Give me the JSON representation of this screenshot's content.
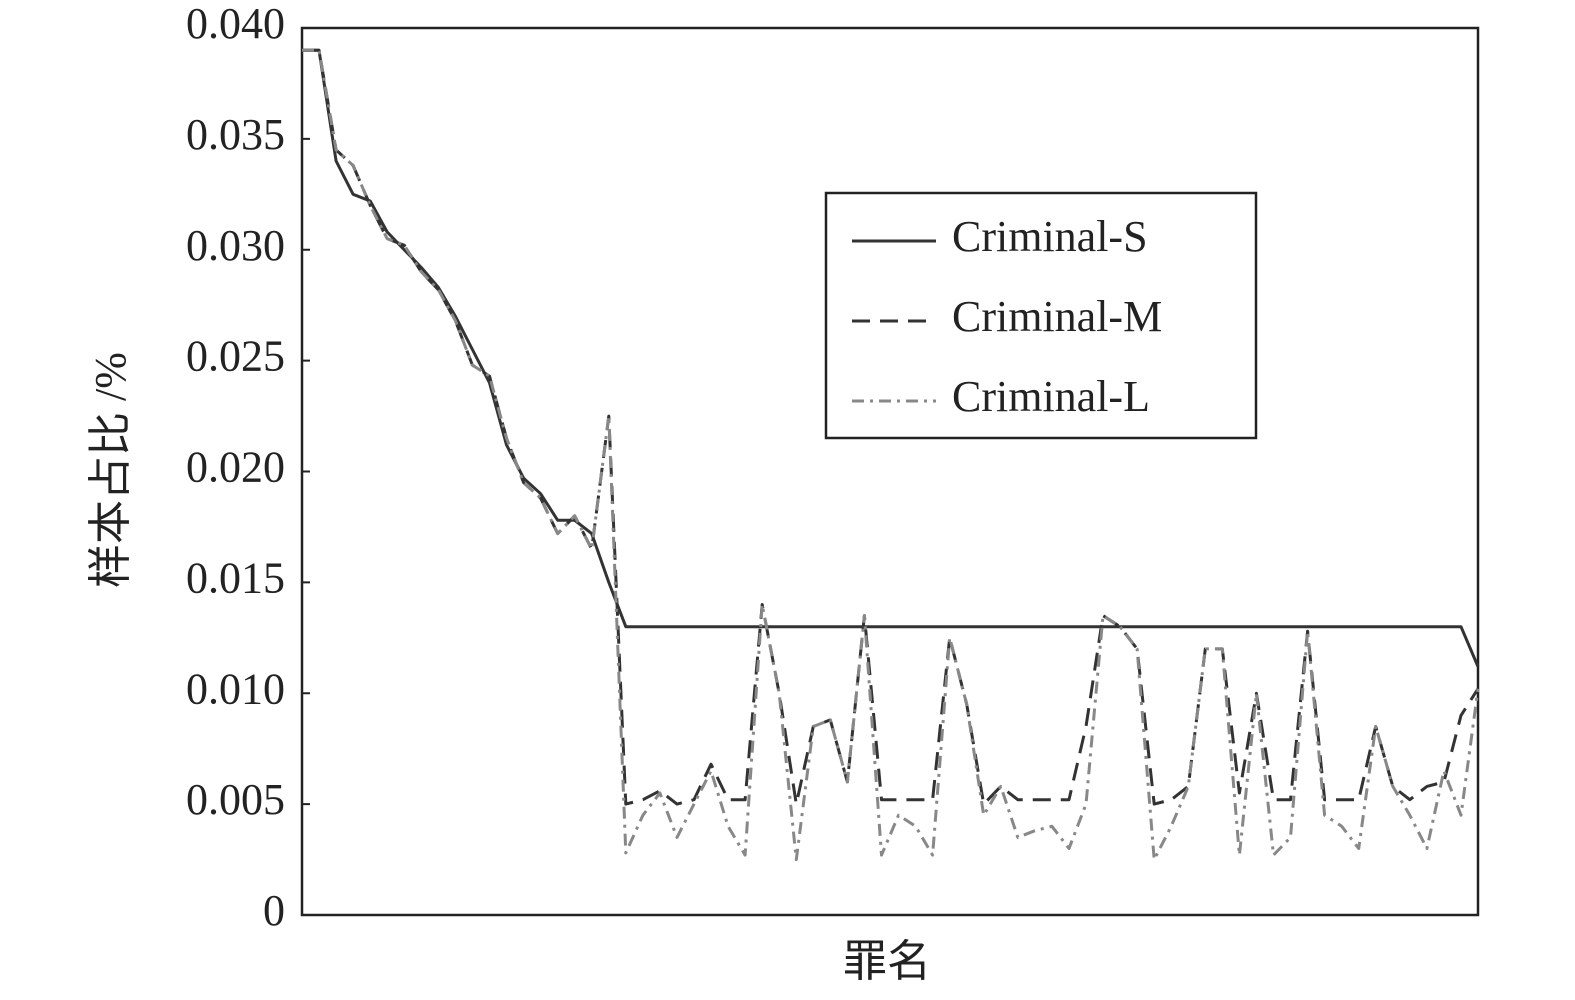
{
  "chart_data": {
    "type": "line",
    "xlabel": "罪名",
    "ylabel": "样本占比 /%",
    "categories": [
      null,
      null,
      null,
      null,
      null,
      null,
      null,
      null,
      null,
      null,
      null,
      null,
      null,
      null,
      null,
      null,
      null,
      null,
      null,
      null,
      null,
      null,
      null,
      null,
      null,
      null,
      null,
      null,
      null,
      null,
      null,
      null,
      null,
      null,
      null,
      null,
      null,
      null,
      null,
      null,
      null,
      null,
      null,
      null,
      null,
      null,
      null,
      null,
      null,
      null,
      null,
      null,
      null,
      null,
      null,
      null,
      null,
      null,
      null,
      null,
      null,
      null,
      null,
      null,
      null,
      null,
      null,
      null,
      null,
      null
    ],
    "series": [
      {
        "name": "Criminal-S",
        "color": "#333333",
        "style": "solid",
        "values": [
          0.039,
          0.039,
          0.034,
          0.0325,
          0.0322,
          0.0308,
          0.03,
          0.0292,
          0.0283,
          0.027,
          0.0255,
          0.024,
          0.0212,
          0.0197,
          0.019,
          0.0178,
          0.0178,
          0.0172,
          0.015,
          0.013,
          0.013,
          0.013,
          0.013,
          0.013,
          0.013,
          0.013,
          0.013,
          0.013,
          0.013,
          0.013,
          0.013,
          0.013,
          0.013,
          0.013,
          0.013,
          0.013,
          0.013,
          0.013,
          0.013,
          0.013,
          0.013,
          0.013,
          0.013,
          0.013,
          0.013,
          0.013,
          0.013,
          0.013,
          0.013,
          0.013,
          0.013,
          0.013,
          0.013,
          0.013,
          0.013,
          0.013,
          0.013,
          0.013,
          0.013,
          0.013,
          0.013,
          0.013,
          0.013,
          0.013,
          0.013,
          0.013,
          0.013,
          0.013,
          0.013,
          0.0112
        ]
      },
      {
        "name": "Criminal-M",
        "color": "#333333",
        "style": "dashed",
        "values": [
          0.039,
          0.039,
          0.0345,
          0.0338,
          0.032,
          0.0305,
          0.0302,
          0.029,
          0.0282,
          0.0268,
          0.0248,
          0.0243,
          0.0215,
          0.0195,
          0.0188,
          0.0172,
          0.018,
          0.0165,
          0.0225,
          0.005,
          0.0052,
          0.0056,
          0.005,
          0.0052,
          0.0068,
          0.0052,
          0.0052,
          0.014,
          0.01,
          0.005,
          0.0085,
          0.0088,
          0.006,
          0.0135,
          0.0052,
          0.0052,
          0.0052,
          0.0052,
          0.0125,
          0.0095,
          0.005,
          0.0058,
          0.0052,
          0.0052,
          0.0052,
          0.0052,
          0.0085,
          0.0135,
          0.013,
          0.012,
          0.005,
          0.0052,
          0.0058,
          0.012,
          0.012,
          0.0055,
          0.01,
          0.0052,
          0.0052,
          0.0128,
          0.0052,
          0.0052,
          0.0052,
          0.0085,
          0.0058,
          0.0052,
          0.0058,
          0.006,
          0.009,
          0.0102
        ]
      },
      {
        "name": "Criminal-L",
        "color": "#888888",
        "style": "dashdot",
        "values": [
          0.039,
          0.039,
          0.0345,
          0.0338,
          0.032,
          0.0305,
          0.0302,
          0.029,
          0.0282,
          0.0268,
          0.0248,
          0.0243,
          0.0215,
          0.0195,
          0.0188,
          0.0172,
          0.018,
          0.0165,
          0.0225,
          0.0028,
          0.0045,
          0.0055,
          0.0035,
          0.005,
          0.0065,
          0.004,
          0.0027,
          0.014,
          0.01,
          0.0025,
          0.0085,
          0.0088,
          0.006,
          0.0135,
          0.0027,
          0.0045,
          0.004,
          0.0027,
          0.0125,
          0.0095,
          0.0045,
          0.0058,
          0.0035,
          0.0038,
          0.004,
          0.003,
          0.005,
          0.0135,
          0.013,
          0.012,
          0.0025,
          0.004,
          0.0058,
          0.012,
          0.012,
          0.0027,
          0.01,
          0.0027,
          0.0035,
          0.0128,
          0.0045,
          0.004,
          0.003,
          0.0085,
          0.0058,
          0.0045,
          0.003,
          0.0065,
          0.0045,
          0.0102
        ]
      }
    ],
    "ylim": [
      0,
      0.04
    ],
    "yticks": [
      0,
      0.005,
      {
        "value": 0.01,
        "label": "0.010"
      },
      0.015,
      {
        "value": 0.02,
        "label": "0.020"
      },
      0.025,
      {
        "value": 0.03,
        "label": "0.030"
      },
      0.035,
      {
        "value": 0.04,
        "label": "0.040"
      }
    ],
    "grid": false,
    "legend": "upper right"
  }
}
